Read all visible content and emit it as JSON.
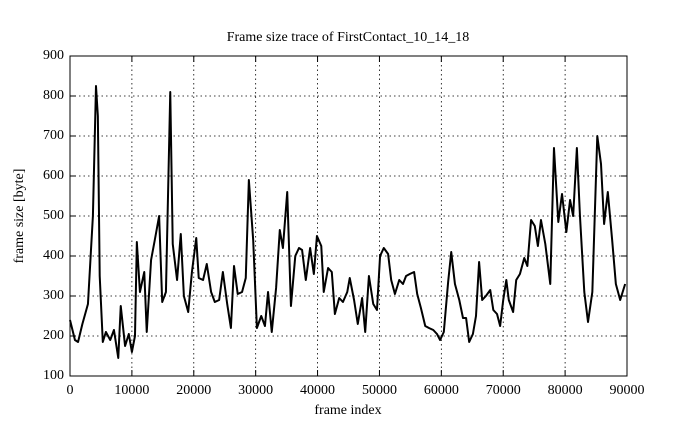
{
  "chart_data": {
    "type": "line",
    "title": "Frame size trace of FirstContact_10_14_18",
    "x_label": "frame index",
    "y_label": "frame size [byte]",
    "x": [
      0,
      800,
      1300,
      2000,
      2900,
      3700,
      4200,
      4500,
      4800,
      5300,
      5800,
      6500,
      7100,
      7800,
      8200,
      8900,
      9500,
      10000,
      10500,
      10800,
      11300,
      12000,
      12400,
      13100,
      13700,
      14400,
      14900,
      15500,
      16200,
      16600,
      17300,
      17900,
      18400,
      19100,
      19700,
      20400,
      20800,
      21500,
      22100,
      22800,
      23400,
      24100,
      24700,
      25400,
      26000,
      26500,
      27100,
      27800,
      28400,
      28900,
      29600,
      30200,
      30900,
      31500,
      32000,
      32600,
      33300,
      33900,
      34400,
      35100,
      35700,
      36400,
      37000,
      37500,
      38100,
      38800,
      39400,
      39900,
      40600,
      41000,
      41700,
      42300,
      42800,
      43500,
      44100,
      44800,
      45200,
      45900,
      46500,
      47200,
      47700,
      48300,
      49000,
      49600,
      50100,
      50700,
      51400,
      51900,
      52500,
      53200,
      53800,
      54300,
      54900,
      55600,
      56100,
      56700,
      57400,
      58000,
      58700,
      59300,
      59800,
      60400,
      61100,
      61600,
      62200,
      62900,
      63500,
      64000,
      64500,
      65100,
      65600,
      66100,
      66600,
      67200,
      67900,
      68400,
      69000,
      69500,
      70000,
      70500,
      70900,
      71600,
      72100,
      72700,
      73400,
      73900,
      74500,
      75100,
      75600,
      76100,
      76800,
      77600,
      78200,
      78900,
      79500,
      80200,
      80800,
      81300,
      81900,
      82400,
      83100,
      83700,
      84400,
      85200,
      85800,
      86300,
      86900,
      87600,
      88200,
      88900,
      89700
    ],
    "series": [
      {
        "name": "frame size",
        "color": "#000000",
        "values": [
          240,
          190,
          185,
          230,
          280,
          500,
          825,
          750,
          350,
          185,
          210,
          190,
          215,
          145,
          275,
          175,
          205,
          160,
          200,
          435,
          310,
          360,
          210,
          390,
          440,
          500,
          285,
          310,
          810,
          430,
          340,
          455,
          300,
          260,
          360,
          445,
          345,
          340,
          380,
          310,
          285,
          290,
          360,
          280,
          220,
          375,
          305,
          310,
          345,
          590,
          440,
          220,
          250,
          225,
          310,
          210,
          320,
          465,
          420,
          560,
          275,
          400,
          420,
          415,
          340,
          420,
          355,
          450,
          425,
          310,
          370,
          360,
          255,
          295,
          285,
          310,
          345,
          290,
          230,
          295,
          210,
          350,
          280,
          265,
          400,
          420,
          405,
          340,
          305,
          340,
          330,
          350,
          355,
          360,
          305,
          270,
          225,
          220,
          215,
          205,
          190,
          210,
          335,
          410,
          330,
          290,
          245,
          245,
          185,
          205,
          250,
          385,
          290,
          300,
          315,
          265,
          255,
          225,
          290,
          340,
          290,
          260,
          340,
          355,
          395,
          375,
          490,
          475,
          425,
          490,
          430,
          330,
          670,
          485,
          555,
          460,
          540,
          500,
          670,
          500,
          310,
          235,
          310,
          700,
          630,
          480,
          560,
          440,
          330,
          290,
          330
        ]
      }
    ],
    "xlim": [
      0,
      90000
    ],
    "ylim": [
      100,
      900
    ],
    "xticks": [
      0,
      10000,
      20000,
      30000,
      40000,
      50000,
      60000,
      70000,
      80000,
      90000
    ],
    "yticks": [
      100,
      200,
      300,
      400,
      500,
      600,
      700,
      800,
      900
    ],
    "grid": true
  }
}
